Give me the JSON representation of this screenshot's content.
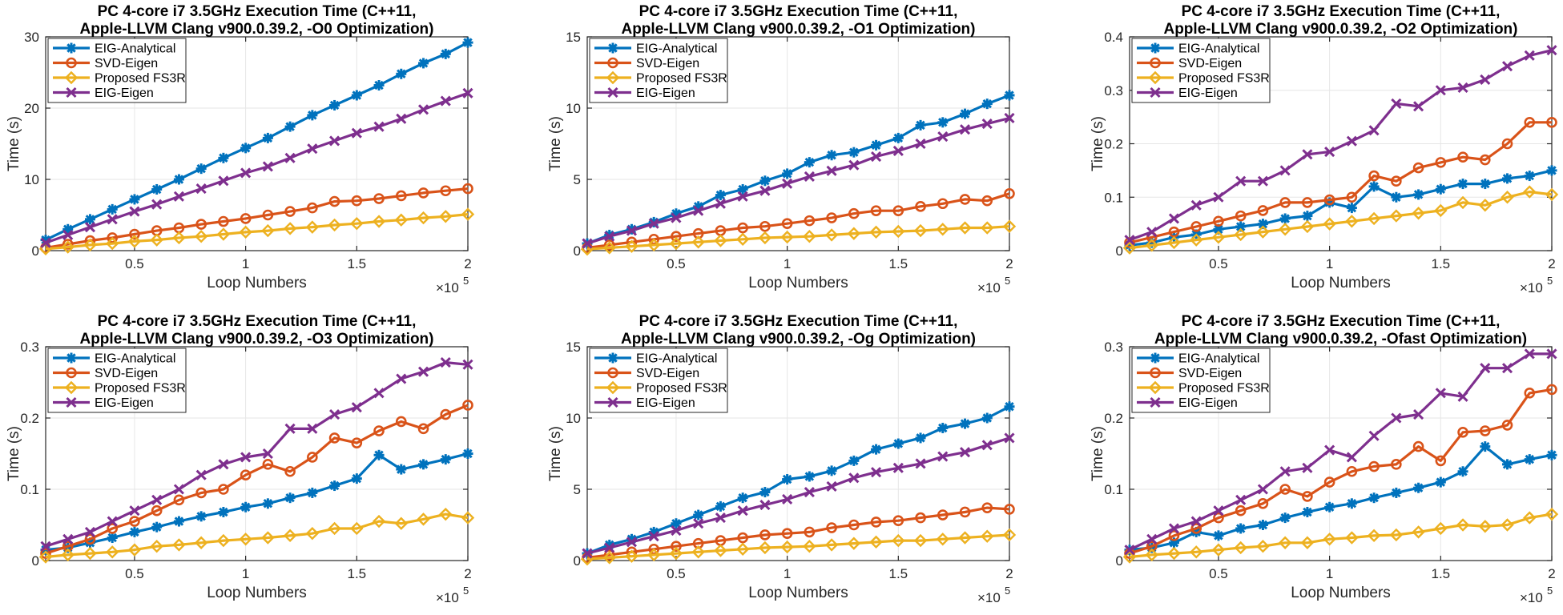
{
  "colors": {
    "EIG-Analytical": "#0072BD",
    "SVD-Eigen": "#D95319",
    "Proposed FS3R": "#EDB120",
    "EIG-Eigen": "#7E2F8E",
    "grid": "#e6e6e6",
    "axis": "#262626"
  },
  "chart_data": [
    {
      "type": "line",
      "title_line1": "PC 4-core i7 3.5GHz Execution Time (C++11,",
      "title_line2": "Apple-LLVM Clang v900.0.39.2, -O0 Optimization)",
      "xlabel": "Loop Numbers",
      "ylabel": "Time (s)",
      "x_exponent_base": "×10",
      "x_exponent": "5",
      "xlim": [
        0.1,
        2.0
      ],
      "ylim": [
        0,
        30
      ],
      "xticks": [
        0.5,
        1,
        1.5,
        2
      ],
      "xtick_labels": [
        "0.5",
        "1",
        "1.5",
        "2"
      ],
      "yticks": [
        0,
        10,
        20,
        30
      ],
      "ytick_labels": [
        "0",
        "10",
        "20",
        "30"
      ],
      "grid": true,
      "legend_position": "top-left",
      "x": [
        0.1,
        0.2,
        0.3,
        0.4,
        0.5,
        0.6,
        0.7,
        0.8,
        0.9,
        1.0,
        1.1,
        1.2,
        1.3,
        1.4,
        1.5,
        1.6,
        1.7,
        1.8,
        1.9,
        2.0
      ],
      "series": [
        {
          "name": "EIG-Analytical",
          "marker": "asterisk",
          "values": [
            1.5,
            3.0,
            4.4,
            5.8,
            7.2,
            8.6,
            10.0,
            11.5,
            13.0,
            14.4,
            15.8,
            17.4,
            19.0,
            20.4,
            21.8,
            23.2,
            24.8,
            26.3,
            27.6,
            29.2
          ]
        },
        {
          "name": "SVD-Eigen",
          "marker": "circle",
          "values": [
            0.4,
            0.9,
            1.4,
            1.8,
            2.3,
            2.8,
            3.2,
            3.7,
            4.1,
            4.5,
            5.0,
            5.5,
            6.0,
            6.9,
            7.0,
            7.3,
            7.7,
            8.1,
            8.4,
            8.7
          ]
        },
        {
          "name": "Proposed FS3R",
          "marker": "diamond",
          "values": [
            0.25,
            0.5,
            0.8,
            1.0,
            1.3,
            1.5,
            1.8,
            2.0,
            2.3,
            2.6,
            2.8,
            3.1,
            3.3,
            3.6,
            3.8,
            4.1,
            4.3,
            4.6,
            4.8,
            5.1
          ]
        },
        {
          "name": "EIG-Eigen",
          "marker": "x",
          "values": [
            1.1,
            2.2,
            3.3,
            4.4,
            5.5,
            6.5,
            7.6,
            8.7,
            9.8,
            10.9,
            11.8,
            13.0,
            14.3,
            15.4,
            16.5,
            17.4,
            18.5,
            19.8,
            21.0,
            22.1
          ]
        }
      ]
    },
    {
      "type": "line",
      "title_line1": "PC 4-core i7 3.5GHz Execution Time (C++11,",
      "title_line2": "Apple-LLVM Clang v900.0.39.2, -O1 Optimization)",
      "xlabel": "Loop Numbers",
      "ylabel": "Time (s)",
      "x_exponent_base": "×10",
      "x_exponent": "5",
      "xlim": [
        0.1,
        2.0
      ],
      "ylim": [
        0,
        15
      ],
      "xticks": [
        0.5,
        1,
        1.5,
        2
      ],
      "xtick_labels": [
        "0.5",
        "1",
        "1.5",
        "2"
      ],
      "yticks": [
        0,
        5,
        10,
        15
      ],
      "ytick_labels": [
        "0",
        "5",
        "10",
        "15"
      ],
      "grid": true,
      "legend_position": "top-left",
      "x": [
        0.1,
        0.2,
        0.3,
        0.4,
        0.5,
        0.6,
        0.7,
        0.8,
        0.9,
        1.0,
        1.1,
        1.2,
        1.3,
        1.4,
        1.5,
        1.6,
        1.7,
        1.8,
        1.9,
        2.0
      ],
      "series": [
        {
          "name": "EIG-Analytical",
          "marker": "asterisk",
          "values": [
            0.5,
            1.1,
            1.5,
            2.0,
            2.6,
            3.1,
            3.9,
            4.3,
            4.9,
            5.4,
            6.2,
            6.7,
            6.9,
            7.4,
            7.9,
            8.8,
            9.0,
            9.6,
            10.3,
            10.9
          ]
        },
        {
          "name": "SVD-Eigen",
          "marker": "circle",
          "values": [
            0.2,
            0.4,
            0.6,
            0.8,
            1.0,
            1.2,
            1.4,
            1.6,
            1.7,
            1.9,
            2.1,
            2.3,
            2.6,
            2.8,
            2.8,
            3.1,
            3.3,
            3.6,
            3.5,
            4.0
          ]
        },
        {
          "name": "Proposed FS3R",
          "marker": "diamond",
          "values": [
            0.1,
            0.2,
            0.3,
            0.4,
            0.5,
            0.6,
            0.7,
            0.8,
            0.9,
            0.95,
            1.0,
            1.1,
            1.2,
            1.3,
            1.35,
            1.4,
            1.5,
            1.6,
            1.6,
            1.7
          ]
        },
        {
          "name": "EIG-Eigen",
          "marker": "x",
          "values": [
            0.5,
            1.0,
            1.4,
            1.9,
            2.3,
            2.8,
            3.3,
            3.8,
            4.2,
            4.7,
            5.2,
            5.6,
            6.0,
            6.6,
            7.0,
            7.5,
            8.0,
            8.5,
            8.9,
            9.3
          ]
        }
      ]
    },
    {
      "type": "line",
      "title_line1": "PC 4-core i7 3.5GHz Execution Time (C++11,",
      "title_line2": "Apple-LLVM Clang v900.0.39.2, -O2 Optimization)",
      "xlabel": "Loop Numbers",
      "ylabel": "Time (s)",
      "x_exponent_base": "×10",
      "x_exponent": "5",
      "xlim": [
        0.1,
        2.0
      ],
      "ylim": [
        0,
        0.4
      ],
      "xticks": [
        0.5,
        1,
        1.5,
        2
      ],
      "xtick_labels": [
        "0.5",
        "1",
        "1.5",
        "2"
      ],
      "yticks": [
        0,
        0.1,
        0.2,
        0.3,
        0.4
      ],
      "ytick_labels": [
        "0",
        "0.1",
        "0.2",
        "0.3",
        "0.4"
      ],
      "grid": true,
      "legend_position": "top-left",
      "x": [
        0.1,
        0.2,
        0.3,
        0.4,
        0.5,
        0.6,
        0.7,
        0.8,
        0.9,
        1.0,
        1.1,
        1.2,
        1.3,
        1.4,
        1.5,
        1.6,
        1.7,
        1.8,
        1.9,
        2.0
      ],
      "series": [
        {
          "name": "EIG-Analytical",
          "marker": "asterisk",
          "values": [
            0.01,
            0.015,
            0.025,
            0.03,
            0.04,
            0.045,
            0.05,
            0.06,
            0.065,
            0.09,
            0.08,
            0.12,
            0.1,
            0.105,
            0.115,
            0.125,
            0.125,
            0.135,
            0.14,
            0.15
          ]
        },
        {
          "name": "SVD-Eigen",
          "marker": "circle",
          "values": [
            0.015,
            0.025,
            0.035,
            0.045,
            0.055,
            0.065,
            0.075,
            0.09,
            0.09,
            0.095,
            0.1,
            0.14,
            0.13,
            0.155,
            0.165,
            0.175,
            0.17,
            0.2,
            0.24,
            0.24
          ]
        },
        {
          "name": "Proposed FS3R",
          "marker": "diamond",
          "values": [
            0.005,
            0.01,
            0.015,
            0.02,
            0.025,
            0.03,
            0.035,
            0.04,
            0.045,
            0.05,
            0.055,
            0.06,
            0.065,
            0.07,
            0.075,
            0.09,
            0.085,
            0.1,
            0.11,
            0.105
          ]
        },
        {
          "name": "EIG-Eigen",
          "marker": "x",
          "values": [
            0.02,
            0.035,
            0.06,
            0.085,
            0.1,
            0.13,
            0.13,
            0.15,
            0.18,
            0.185,
            0.205,
            0.225,
            0.275,
            0.27,
            0.3,
            0.305,
            0.32,
            0.345,
            0.365,
            0.375
          ]
        }
      ]
    },
    {
      "type": "line",
      "title_line1": "PC 4-core i7 3.5GHz Execution Time (C++11,",
      "title_line2": "Apple-LLVM Clang v900.0.39.2, -O3 Optimization)",
      "xlabel": "Loop Numbers",
      "ylabel": "Time (s)",
      "x_exponent_base": "×10",
      "x_exponent": "5",
      "xlim": [
        0.1,
        2.0
      ],
      "ylim": [
        0,
        0.3
      ],
      "xticks": [
        0.5,
        1,
        1.5,
        2
      ],
      "xtick_labels": [
        "0.5",
        "1",
        "1.5",
        "2"
      ],
      "yticks": [
        0,
        0.1,
        0.2,
        0.3
      ],
      "ytick_labels": [
        "0",
        "0.1",
        "0.2",
        "0.3"
      ],
      "grid": true,
      "legend_position": "top-left",
      "x": [
        0.1,
        0.2,
        0.3,
        0.4,
        0.5,
        0.6,
        0.7,
        0.8,
        0.9,
        1.0,
        1.1,
        1.2,
        1.3,
        1.4,
        1.5,
        1.6,
        1.7,
        1.8,
        1.9,
        2.0
      ],
      "series": [
        {
          "name": "EIG-Analytical",
          "marker": "asterisk",
          "values": [
            0.015,
            0.018,
            0.025,
            0.032,
            0.04,
            0.047,
            0.055,
            0.062,
            0.068,
            0.075,
            0.08,
            0.088,
            0.095,
            0.105,
            0.115,
            0.148,
            0.128,
            0.135,
            0.142,
            0.15
          ]
        },
        {
          "name": "SVD-Eigen",
          "marker": "circle",
          "values": [
            0.01,
            0.02,
            0.03,
            0.045,
            0.055,
            0.07,
            0.085,
            0.095,
            0.1,
            0.12,
            0.135,
            0.125,
            0.145,
            0.172,
            0.165,
            0.182,
            0.195,
            0.185,
            0.205,
            0.218
          ]
        },
        {
          "name": "Proposed FS3R",
          "marker": "diamond",
          "values": [
            0.005,
            0.008,
            0.01,
            0.012,
            0.015,
            0.02,
            0.022,
            0.025,
            0.028,
            0.03,
            0.032,
            0.035,
            0.038,
            0.045,
            0.045,
            0.055,
            0.052,
            0.058,
            0.065,
            0.06
          ]
        },
        {
          "name": "EIG-Eigen",
          "marker": "x",
          "values": [
            0.02,
            0.03,
            0.04,
            0.055,
            0.07,
            0.085,
            0.1,
            0.12,
            0.135,
            0.145,
            0.15,
            0.185,
            0.185,
            0.205,
            0.215,
            0.235,
            0.255,
            0.265,
            0.278,
            0.275
          ]
        }
      ]
    },
    {
      "type": "line",
      "title_line1": "PC 4-core i7 3.5GHz Execution Time (C++11,",
      "title_line2": "Apple-LLVM Clang v900.0.39.2, -Og Optimization)",
      "xlabel": "Loop Numbers",
      "ylabel": "Time (s)",
      "x_exponent_base": "×10",
      "x_exponent": "5",
      "xlim": [
        0.1,
        2.0
      ],
      "ylim": [
        0,
        15
      ],
      "xticks": [
        0.5,
        1,
        1.5,
        2
      ],
      "xtick_labels": [
        "0.5",
        "1",
        "1.5",
        "2"
      ],
      "yticks": [
        0,
        5,
        10,
        15
      ],
      "ytick_labels": [
        "0",
        "5",
        "10",
        "15"
      ],
      "grid": true,
      "legend_position": "top-left",
      "x": [
        0.1,
        0.2,
        0.3,
        0.4,
        0.5,
        0.6,
        0.7,
        0.8,
        0.9,
        1.0,
        1.1,
        1.2,
        1.3,
        1.4,
        1.5,
        1.6,
        1.7,
        1.8,
        1.9,
        2.0
      ],
      "series": [
        {
          "name": "EIG-Analytical",
          "marker": "asterisk",
          "values": [
            0.5,
            1.1,
            1.5,
            2.0,
            2.6,
            3.2,
            3.8,
            4.4,
            4.8,
            5.7,
            5.9,
            6.3,
            7.0,
            7.8,
            8.2,
            8.6,
            9.3,
            9.6,
            10.0,
            10.8
          ]
        },
        {
          "name": "SVD-Eigen",
          "marker": "circle",
          "values": [
            0.2,
            0.4,
            0.6,
            0.8,
            1.0,
            1.2,
            1.4,
            1.6,
            1.8,
            1.9,
            2.0,
            2.3,
            2.5,
            2.7,
            2.8,
            3.0,
            3.2,
            3.4,
            3.7,
            3.6
          ]
        },
        {
          "name": "Proposed FS3R",
          "marker": "diamond",
          "values": [
            0.1,
            0.2,
            0.3,
            0.4,
            0.5,
            0.6,
            0.7,
            0.8,
            0.9,
            0.95,
            1.0,
            1.1,
            1.2,
            1.3,
            1.4,
            1.4,
            1.5,
            1.6,
            1.7,
            1.8
          ]
        },
        {
          "name": "EIG-Eigen",
          "marker": "x",
          "values": [
            0.5,
            0.9,
            1.3,
            1.7,
            2.1,
            2.6,
            3.0,
            3.5,
            3.9,
            4.3,
            4.8,
            5.2,
            5.8,
            6.2,
            6.5,
            6.8,
            7.3,
            7.6,
            8.1,
            8.6
          ]
        }
      ]
    },
    {
      "type": "line",
      "title_line1": "PC 4-core i7 3.5GHz Execution Time (C++11,",
      "title_line2": "Apple-LLVM Clang v900.0.39.2, -Ofast Optimization)",
      "xlabel": "Loop Numbers",
      "ylabel": "Time (s)",
      "x_exponent_base": "×10",
      "x_exponent": "5",
      "xlim": [
        0.1,
        2.0
      ],
      "ylim": [
        0,
        0.3
      ],
      "xticks": [
        0.5,
        1,
        1.5,
        2
      ],
      "xtick_labels": [
        "0.5",
        "1",
        "1.5",
        "2"
      ],
      "yticks": [
        0,
        0.1,
        0.2,
        0.3
      ],
      "ytick_labels": [
        "0",
        "0.1",
        "0.2",
        "0.3"
      ],
      "grid": true,
      "legend_position": "top-left",
      "x": [
        0.1,
        0.2,
        0.3,
        0.4,
        0.5,
        0.6,
        0.7,
        0.8,
        0.9,
        1.0,
        1.1,
        1.2,
        1.3,
        1.4,
        1.5,
        1.6,
        1.7,
        1.8,
        1.9,
        2.0
      ],
      "series": [
        {
          "name": "EIG-Analytical",
          "marker": "asterisk",
          "values": [
            0.015,
            0.018,
            0.025,
            0.04,
            0.035,
            0.045,
            0.05,
            0.06,
            0.068,
            0.075,
            0.08,
            0.088,
            0.095,
            0.102,
            0.11,
            0.125,
            0.16,
            0.135,
            0.142,
            0.148
          ]
        },
        {
          "name": "SVD-Eigen",
          "marker": "circle",
          "values": [
            0.01,
            0.02,
            0.035,
            0.045,
            0.06,
            0.07,
            0.08,
            0.1,
            0.09,
            0.11,
            0.125,
            0.132,
            0.135,
            0.16,
            0.14,
            0.18,
            0.182,
            0.19,
            0.235,
            0.24
          ]
        },
        {
          "name": "Proposed FS3R",
          "marker": "diamond",
          "values": [
            0.005,
            0.008,
            0.01,
            0.012,
            0.015,
            0.018,
            0.02,
            0.025,
            0.025,
            0.03,
            0.032,
            0.035,
            0.036,
            0.04,
            0.045,
            0.05,
            0.048,
            0.05,
            0.06,
            0.065
          ]
        },
        {
          "name": "EIG-Eigen",
          "marker": "x",
          "values": [
            0.015,
            0.03,
            0.045,
            0.055,
            0.07,
            0.085,
            0.1,
            0.125,
            0.13,
            0.155,
            0.145,
            0.175,
            0.2,
            0.205,
            0.235,
            0.23,
            0.27,
            0.27,
            0.29,
            0.29
          ]
        }
      ]
    }
  ]
}
